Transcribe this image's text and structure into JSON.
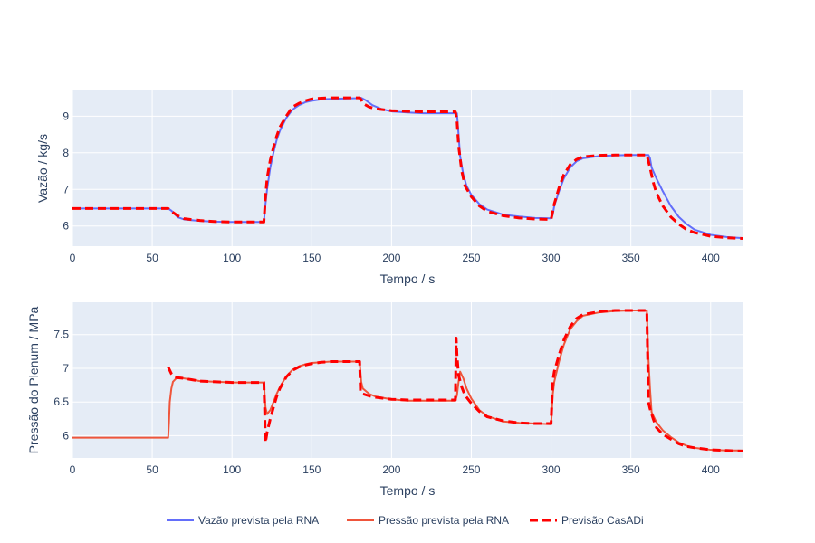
{
  "chart_data": [
    {
      "type": "line",
      "xlabel": "Tempo / s",
      "ylabel": "Vazão / kg/s",
      "xlim": [
        0,
        420
      ],
      "ylim": [
        5.45,
        9.7
      ],
      "xticks": [
        0,
        50,
        100,
        150,
        200,
        250,
        300,
        350,
        400
      ],
      "yticks": [
        6,
        7,
        8,
        9
      ],
      "grid": true,
      "series": [
        {
          "name": "Vazão prevista pela RNA",
          "color": "#636efa",
          "dash": "solid",
          "x": [
            0,
            60,
            62,
            66,
            70,
            80,
            90,
            100,
            110,
            120,
            121,
            122,
            124,
            126,
            128,
            130,
            134,
            138,
            142,
            146,
            150,
            156,
            162,
            170,
            178,
            181,
            184,
            188,
            194,
            200,
            210,
            220,
            230,
            241,
            242,
            243,
            245,
            247,
            250,
            255,
            260,
            270,
            280,
            290,
            300,
            301,
            302,
            305,
            308,
            312,
            316,
            320,
            330,
            340,
            350,
            361,
            362,
            363,
            366,
            370,
            375,
            380,
            385,
            390,
            400,
            410,
            420
          ],
          "y": [
            6.48,
            6.48,
            6.42,
            6.24,
            6.18,
            6.14,
            6.12,
            6.11,
            6.11,
            6.11,
            6.6,
            7.0,
            7.6,
            8.0,
            8.35,
            8.6,
            8.95,
            9.18,
            9.3,
            9.38,
            9.42,
            9.46,
            9.47,
            9.48,
            9.49,
            9.5,
            9.43,
            9.3,
            9.19,
            9.13,
            9.1,
            9.08,
            9.08,
            9.08,
            8.5,
            7.9,
            7.4,
            7.1,
            6.85,
            6.6,
            6.45,
            6.31,
            6.26,
            6.22,
            6.21,
            6.3,
            6.55,
            6.95,
            7.3,
            7.6,
            7.77,
            7.85,
            7.91,
            7.93,
            7.94,
            7.94,
            7.85,
            7.6,
            7.3,
            6.95,
            6.55,
            6.25,
            6.05,
            5.9,
            5.76,
            5.7,
            5.67
          ]
        },
        {
          "name": "Previsão CasADi",
          "color": "#ff0000",
          "dash": "dash",
          "x": [
            0,
            60,
            62,
            66,
            70,
            80,
            90,
            100,
            110,
            120,
            121,
            122,
            124,
            126,
            128,
            130,
            134,
            138,
            142,
            146,
            150,
            156,
            162,
            170,
            178,
            180,
            181,
            182,
            186,
            190,
            200,
            210,
            220,
            230,
            240,
            241,
            242,
            244,
            246,
            250,
            255,
            260,
            270,
            280,
            290,
            300,
            302,
            305,
            308,
            312,
            316,
            320,
            330,
            340,
            350,
            360,
            362,
            364,
            366,
            370,
            375,
            380,
            385,
            390,
            400,
            410,
            420
          ],
          "y": [
            6.48,
            6.48,
            6.4,
            6.28,
            6.2,
            6.15,
            6.12,
            6.11,
            6.11,
            6.11,
            6.8,
            7.3,
            7.8,
            8.15,
            8.45,
            8.7,
            9.0,
            9.25,
            9.35,
            9.42,
            9.47,
            9.49,
            9.5,
            9.5,
            9.5,
            9.5,
            9.45,
            9.35,
            9.25,
            9.2,
            9.15,
            9.13,
            9.12,
            9.12,
            9.12,
            8.9,
            8.2,
            7.5,
            7.1,
            6.8,
            6.55,
            6.4,
            6.28,
            6.22,
            6.19,
            6.18,
            6.6,
            7.05,
            7.4,
            7.68,
            7.82,
            7.89,
            7.93,
            7.94,
            7.94,
            7.94,
            7.6,
            7.2,
            6.9,
            6.55,
            6.25,
            6.05,
            5.9,
            5.82,
            5.72,
            5.68,
            5.66
          ]
        }
      ]
    },
    {
      "type": "line",
      "xlabel": "Tempo / s",
      "ylabel": "Pressão do Plenum / MPa",
      "xlim": [
        0,
        420
      ],
      "ylim": [
        5.67,
        7.98
      ],
      "xticks": [
        0,
        50,
        100,
        150,
        200,
        250,
        300,
        350,
        400
      ],
      "yticks": [
        6,
        6.5,
        7,
        7.5
      ],
      "grid": true,
      "series": [
        {
          "name": "Pressão prevista pela RNA",
          "color": "#ef553b",
          "dash": "solid",
          "x": [
            0,
            60,
            60.5,
            61,
            62,
            63,
            65,
            68,
            70,
            75,
            80,
            90,
            100,
            110,
            120,
            120.5,
            121,
            122,
            124,
            126,
            128,
            130,
            134,
            138,
            142,
            146,
            150,
            156,
            162,
            170,
            178,
            180,
            180.5,
            181,
            182,
            184,
            186,
            190,
            200,
            210,
            220,
            230,
            240,
            241,
            242,
            243,
            245,
            247,
            250,
            255,
            260,
            270,
            280,
            290,
            300,
            300.5,
            301,
            302,
            305,
            308,
            312,
            316,
            320,
            330,
            340,
            350,
            360,
            360.5,
            361,
            362,
            363,
            366,
            370,
            375,
            380,
            385,
            390,
            400,
            410,
            420
          ],
          "y": [
            5.97,
            5.97,
            6.2,
            6.5,
            6.7,
            6.8,
            6.85,
            6.86,
            6.85,
            6.83,
            6.81,
            6.8,
            6.79,
            6.79,
            6.79,
            6.6,
            6.42,
            6.32,
            6.38,
            6.5,
            6.62,
            6.72,
            6.88,
            6.98,
            7.03,
            7.06,
            7.08,
            7.09,
            7.1,
            7.1,
            7.1,
            7.1,
            6.95,
            6.8,
            6.7,
            6.66,
            6.62,
            6.58,
            6.54,
            6.52,
            6.52,
            6.52,
            6.52,
            6.6,
            6.8,
            6.95,
            6.85,
            6.7,
            6.55,
            6.38,
            6.29,
            6.21,
            6.19,
            6.18,
            6.17,
            6.35,
            6.6,
            6.8,
            7.1,
            7.35,
            7.58,
            7.7,
            7.78,
            7.83,
            7.85,
            7.86,
            7.86,
            7.5,
            7.15,
            6.7,
            6.35,
            6.2,
            6.08,
            5.98,
            5.9,
            5.85,
            5.82,
            5.79,
            5.78,
            5.78
          ]
        },
        {
          "name": "Previsão CasADi",
          "color": "#ff0000",
          "dash": "dash",
          "x": [
            60,
            62,
            64,
            66,
            70,
            75,
            80,
            90,
            100,
            110,
            120,
            121,
            122,
            124,
            126,
            128,
            130,
            134,
            138,
            142,
            146,
            150,
            156,
            162,
            170,
            178,
            180,
            180.5,
            182,
            186,
            190,
            200,
            210,
            220,
            230,
            240,
            240.5,
            241,
            242,
            244,
            246,
            250,
            255,
            260,
            270,
            280,
            290,
            300,
            301,
            302,
            305,
            308,
            312,
            316,
            320,
            330,
            340,
            350,
            360,
            361,
            362,
            364,
            366,
            370,
            375,
            380,
            385,
            390,
            400,
            410,
            420
          ],
          "y": [
            7.02,
            6.92,
            6.87,
            6.86,
            6.85,
            6.83,
            6.81,
            6.8,
            6.79,
            6.79,
            6.79,
            5.9,
            6.05,
            6.25,
            6.42,
            6.58,
            6.7,
            6.87,
            6.97,
            7.02,
            7.05,
            7.07,
            7.09,
            7.1,
            7.1,
            7.1,
            7.1,
            6.65,
            6.62,
            6.59,
            6.57,
            6.54,
            6.53,
            6.53,
            6.53,
            6.53,
            7.45,
            7.2,
            6.9,
            6.72,
            6.6,
            6.48,
            6.36,
            6.28,
            6.22,
            6.19,
            6.18,
            6.18,
            6.8,
            6.95,
            7.2,
            7.42,
            7.62,
            7.74,
            7.8,
            7.84,
            7.86,
            7.86,
            7.86,
            6.5,
            6.4,
            6.25,
            6.12,
            6.02,
            5.95,
            5.88,
            5.84,
            5.82,
            5.79,
            5.78,
            5.77
          ]
        }
      ]
    }
  ],
  "legend": {
    "placement": "bottom",
    "items": [
      {
        "label": "Vazão prevista pela RNA",
        "color": "#636efa",
        "dash": "solid"
      },
      {
        "label": "Pressão prevista pela RNA",
        "color": "#ef553b",
        "dash": "solid"
      },
      {
        "label": "Previsão CasADi",
        "color": "#ff0000",
        "dash": "dash"
      }
    ]
  }
}
